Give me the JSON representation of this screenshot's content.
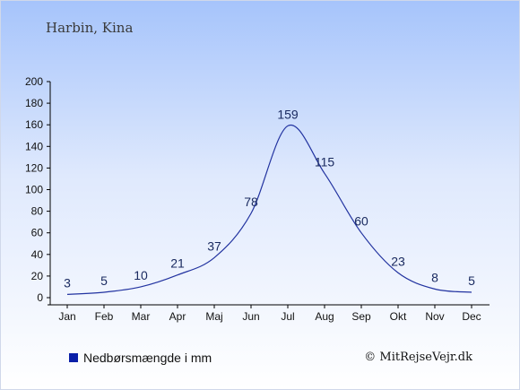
{
  "location_title": "Harbin, Kina",
  "legend": {
    "label": "Nedbørsmængde i mm",
    "color": "#0a1fa8"
  },
  "credit": "© MitRejseVejr.dk",
  "colors": {
    "line": "#2233a0",
    "text": "#1a2a60",
    "axis": "#000000"
  },
  "chart_data": {
    "type": "line",
    "categories": [
      "Jan",
      "Feb",
      "Mar",
      "Apr",
      "Maj",
      "Jun",
      "Jul",
      "Aug",
      "Sep",
      "Okt",
      "Nov",
      "Dec"
    ],
    "series": [
      {
        "name": "Nedbørsmængde i mm",
        "values": [
          3,
          5,
          10,
          21,
          37,
          78,
          159,
          115,
          60,
          23,
          8,
          5
        ]
      }
    ],
    "ylim": [
      0,
      200
    ],
    "yticks": [
      0,
      20,
      40,
      60,
      80,
      100,
      120,
      140,
      160,
      180,
      200
    ],
    "grid": false,
    "legend_position": "bottom-left",
    "data_labels": true
  }
}
